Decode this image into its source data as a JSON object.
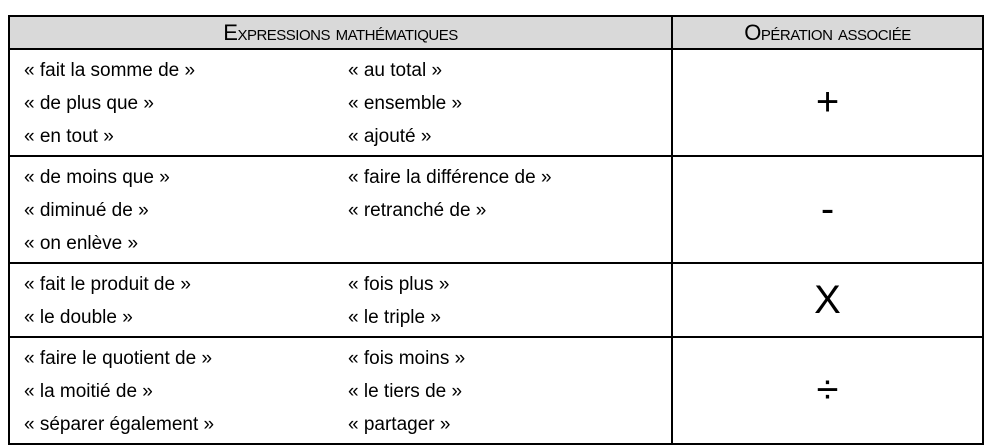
{
  "header": {
    "expressions": "Expressions mathématiques",
    "operation": "Opération associée"
  },
  "rows": [
    {
      "left": [
        "« fait la somme de »",
        "« de plus que »",
        "« en tout »"
      ],
      "right": [
        "« au total »",
        "« ensemble »",
        "« ajouté »"
      ],
      "operation": "+"
    },
    {
      "left": [
        "« de moins que »",
        "« diminué de »",
        "« on enlève »"
      ],
      "right": [
        "« faire la différence de »",
        "« retranché de »",
        ""
      ],
      "operation": "-"
    },
    {
      "left": [
        "« fait le produit de »",
        "« le double »"
      ],
      "right": [
        "« fois plus »",
        "« le triple »"
      ],
      "operation": "X"
    },
    {
      "left": [
        "« faire le quotient de »",
        "« la moitié de »",
        "« séparer également »"
      ],
      "right": [
        "« fois moins »",
        "« le tiers de »",
        "« partager »"
      ],
      "operation": "÷"
    }
  ]
}
